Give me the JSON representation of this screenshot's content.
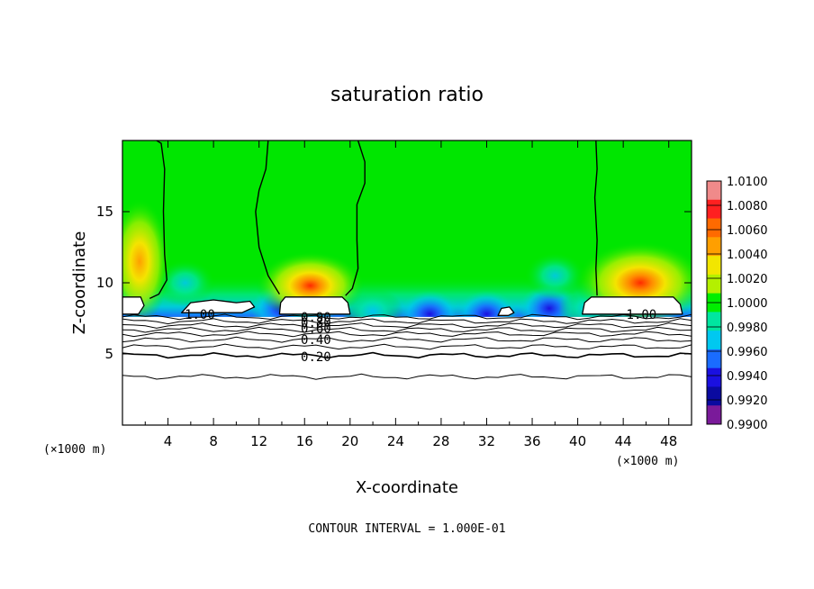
{
  "chart_data": {
    "type": "heatmap",
    "title": "saturation ratio",
    "xlabel": "X-coordinate",
    "ylabel": "Z-coordinate",
    "x_unit_left": "(×1000 m)",
    "x_unit_right": "(×1000 m)",
    "footer": "CONTOUR INTERVAL = 1.000E-01",
    "xlim": [
      0,
      50
    ],
    "ylim": [
      0,
      20
    ],
    "x_ticks": [
      4,
      8,
      12,
      16,
      20,
      24,
      28,
      32,
      36,
      40,
      44,
      48
    ],
    "y_ticks": [
      5,
      10,
      15
    ],
    "colorbar": {
      "levels": [
        "1.0100",
        "1.0080",
        "1.0060",
        "1.0040",
        "1.0020",
        "1.0000",
        "0.9980",
        "0.9960",
        "0.9940",
        "0.9920",
        "0.9900"
      ],
      "colors": [
        "#f08a8a",
        "#ff2020",
        "#ff6a00",
        "#ff9f00",
        "#f2e600",
        "#b4f000",
        "#00ee00",
        "#00e6a0",
        "#00c8f0",
        "#1a6cff",
        "#1a10e0",
        "#0a0aa0",
        "#7a1a9a"
      ]
    },
    "contour_labels": [
      {
        "text": "1.00",
        "x": 6.8,
        "z": 7.8
      },
      {
        "text": "0.90",
        "x": 17.0,
        "z": 7.6
      },
      {
        "text": "0.80",
        "x": 17.0,
        "z": 7.2
      },
      {
        "text": "0.60",
        "x": 17.0,
        "z": 6.8
      },
      {
        "text": "0.40",
        "x": 17.0,
        "z": 6.0
      },
      {
        "text": "0.20",
        "x": 17.0,
        "z": 4.8
      },
      {
        "text": "1.00",
        "x": 45.6,
        "z": 7.8
      }
    ],
    "contour_levels_z": [
      7.6,
      7.3,
      7.0,
      6.7,
      6.4,
      6.0,
      5.5,
      4.9,
      3.4
    ],
    "hotspots": [
      {
        "x": 1.5,
        "z": 11.5,
        "value": 1.003
      },
      {
        "x": 16.5,
        "z": 9.8,
        "value": 1.006
      },
      {
        "x": 45.5,
        "z": 10.0,
        "value": 1.006
      }
    ],
    "coldspots": [
      {
        "x": 5.5,
        "z": 10.0,
        "value": 0.9965
      },
      {
        "x": 14.0,
        "z": 8.2,
        "value": 0.993
      },
      {
        "x": 22.0,
        "z": 8.0,
        "value": 0.994
      },
      {
        "x": 27.0,
        "z": 7.8,
        "value": 0.993
      },
      {
        "x": 32.0,
        "z": 7.8,
        "value": 0.993
      },
      {
        "x": 37.5,
        "z": 8.2,
        "value": 0.992
      },
      {
        "x": 38.0,
        "z": 10.5,
        "value": 0.9965
      },
      {
        "x": 41.0,
        "z": 8.2,
        "value": 0.994
      }
    ]
  }
}
